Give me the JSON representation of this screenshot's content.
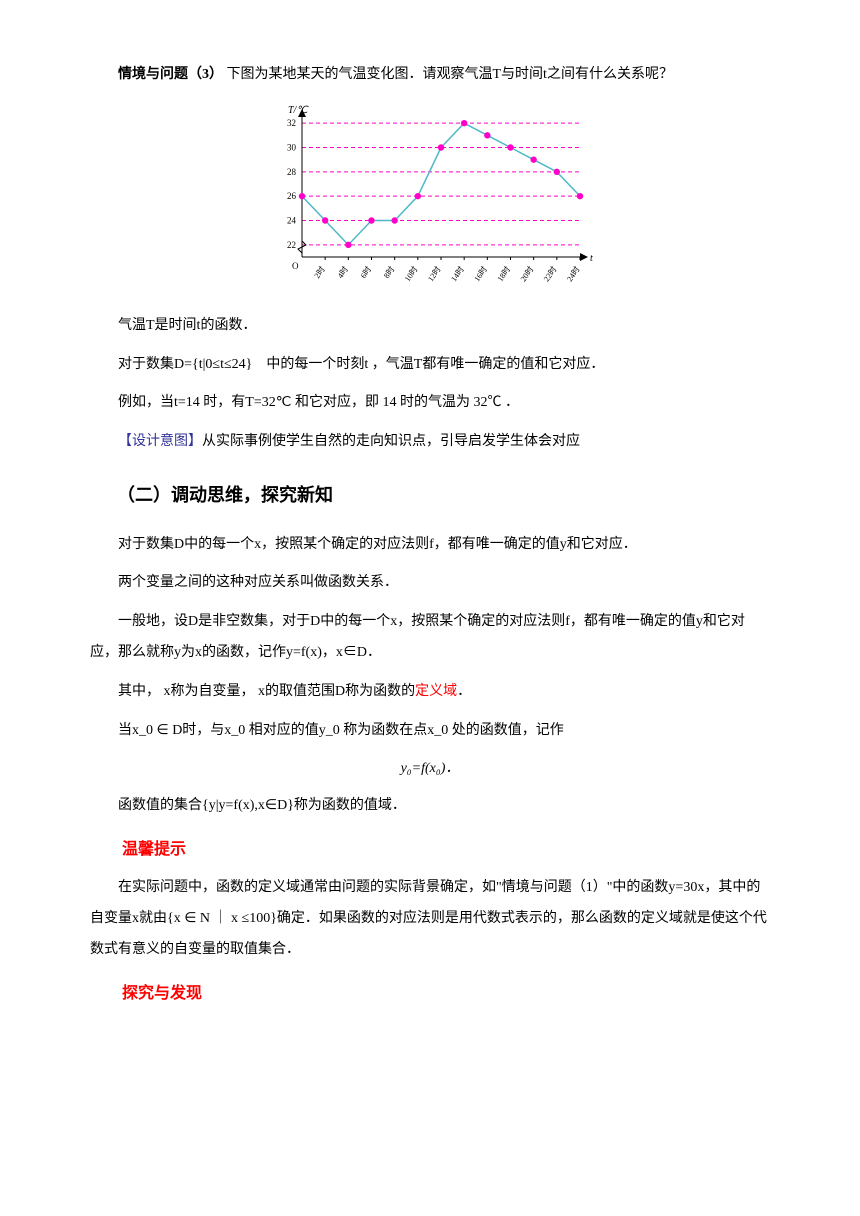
{
  "heading_q3": "情境与问题（3）",
  "q3_text": "下图为某地某天的气温变化图．请观察气温T与时间t之间有什么关系呢？",
  "chart": {
    "type": "line",
    "y_label": "T/℃",
    "x_label": "t",
    "y_ticks": [
      22,
      24,
      26,
      28,
      30,
      32
    ],
    "x_ticks": [
      "2时",
      "4时",
      "6时",
      "8时",
      "10时",
      "12时",
      "14时",
      "16时",
      "18时",
      "20时",
      "22时",
      "24时"
    ],
    "x_values": [
      0,
      2,
      4,
      6,
      8,
      10,
      12,
      14,
      16,
      18,
      20,
      22,
      24
    ],
    "y_values": [
      26,
      24,
      22,
      24,
      24,
      26,
      30,
      32,
      31,
      30,
      29,
      28,
      26
    ],
    "point_color": "#ff00c8",
    "line_color": "#4db8c9",
    "grid_color": "#ff00c8",
    "bg": "#ffffff"
  },
  "p1": "气温T是时间t的函数．",
  "p2": "对于数集D={t|0≤t≤24}　中的每一个时刻t ，气温T都有唯一确定的值和它对应．",
  "p3": "例如，当t=14 时，有T=32℃ 和它对应，即 14 时的气温为 32℃ ．",
  "design_label": "【设计意图】",
  "design_text": "从实际事例使学生自然的走向知识点，引导启发学生体会对应",
  "section_title": "（二）调动思维，探究新知",
  "c1": "对于数集D中的每一个x，按照某个确定的对应法则f，都有唯一确定的值y和它对应．",
  "c2": "两个变量之间的这种对应关系叫做函数关系．",
  "c3": "一般地，设D是非空数集，对于D中的每一个x，按照某个确定的对应法则f，都有唯一确定的值y和它对应，那么就称y为x的函数，记作y=f(x)，x∈D．",
  "c4a": "其中，  x称为自变量，  x的取值范围D称为函数的",
  "c4b": "定义域",
  "c4c": "．",
  "c5": "当x_0 ∈ D时，与x_0 相对应的值y_0 称为函数在点x_0 处的函数值，记作",
  "formula": "y₀=f(x₀)．",
  "c6": "函数值的集合{y|y=f(x),x∈D}称为函数的值域．",
  "tip_heading": "温馨提示",
  "tip_text": "在实际问题中，函数的定义域通常由问题的实际背景确定，如\"情境与问题（1）\"中的函数y=30x，其中的自变量x就由{x ∈ N ｜ x ≤100}确定．如果函数的对应法则是用代数式表示的，那么函数的定义域就是使这个代数式有意义的自变量的取值集合．",
  "explore_heading": "探究与发现"
}
